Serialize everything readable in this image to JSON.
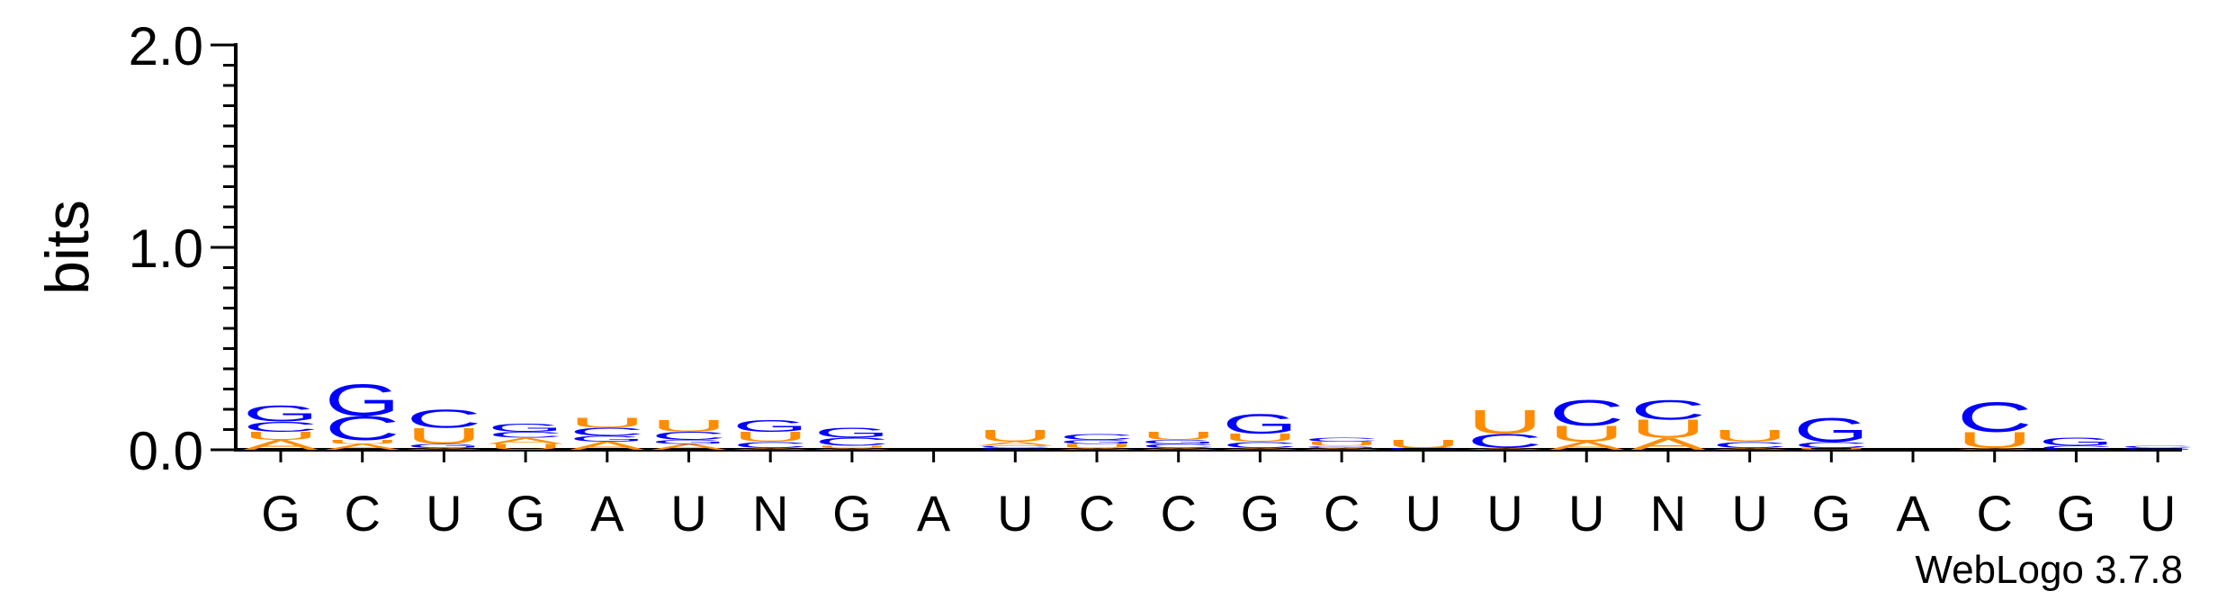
{
  "chart_data": {
    "type": "sequence-logo",
    "ylabel": "bits",
    "ylim": [
      0,
      2.0
    ],
    "yticks": [
      {
        "value": 0.0,
        "label": "0.0"
      },
      {
        "value": 1.0,
        "label": "1.0"
      },
      {
        "value": 2.0,
        "label": "2.0"
      }
    ],
    "minor_tick_step": 0.1,
    "colors": {
      "A": "#ff8c00",
      "U": "#ff8c00",
      "G": "#0000ff",
      "C": "#0000ff"
    },
    "x_labels": [
      "G",
      "C",
      "U",
      "G",
      "A",
      "U",
      "N",
      "G",
      "A",
      "U",
      "C",
      "C",
      "G",
      "C",
      "U",
      "U",
      "U",
      "N",
      "U",
      "G",
      "A",
      "C",
      "G",
      "U"
    ],
    "columns": [
      {
        "stack": [
          {
            "letter": "A",
            "bits": 0.05
          },
          {
            "letter": "U",
            "bits": 0.04
          },
          {
            "letter": "C",
            "bits": 0.05
          },
          {
            "letter": "G",
            "bits": 0.08
          }
        ]
      },
      {
        "stack": [
          {
            "letter": "A",
            "bits": 0.03
          },
          {
            "letter": "U",
            "bits": 0.02
          },
          {
            "letter": "C",
            "bits": 0.12
          },
          {
            "letter": "G",
            "bits": 0.16
          }
        ]
      },
      {
        "stack": [
          {
            "letter": "A",
            "bits": 0.01
          },
          {
            "letter": "G",
            "bits": 0.02
          },
          {
            "letter": "U",
            "bits": 0.08
          },
          {
            "letter": "C",
            "bits": 0.09
          }
        ]
      },
      {
        "stack": [
          {
            "letter": "U",
            "bits": 0.03
          },
          {
            "letter": "A",
            "bits": 0.03
          },
          {
            "letter": "C",
            "bits": 0.03
          },
          {
            "letter": "G",
            "bits": 0.04
          }
        ]
      },
      {
        "stack": [
          {
            "letter": "A",
            "bits": 0.04
          },
          {
            "letter": "G",
            "bits": 0.03
          },
          {
            "letter": "C",
            "bits": 0.04
          },
          {
            "letter": "U",
            "bits": 0.05
          }
        ]
      },
      {
        "stack": [
          {
            "letter": "A",
            "bits": 0.03
          },
          {
            "letter": "G",
            "bits": 0.02
          },
          {
            "letter": "C",
            "bits": 0.04
          },
          {
            "letter": "U",
            "bits": 0.06
          }
        ]
      },
      {
        "stack": [
          {
            "letter": "A",
            "bits": 0.01
          },
          {
            "letter": "C",
            "bits": 0.03
          },
          {
            "letter": "U",
            "bits": 0.05
          },
          {
            "letter": "G",
            "bits": 0.06
          }
        ]
      },
      {
        "stack": [
          {
            "letter": "A",
            "bits": 0.01
          },
          {
            "letter": "U",
            "bits": 0.01
          },
          {
            "letter": "C",
            "bits": 0.04
          },
          {
            "letter": "G",
            "bits": 0.05
          }
        ]
      },
      {
        "stack": []
      },
      {
        "stack": [
          {
            "letter": "G",
            "bits": 0.01
          },
          {
            "letter": "C",
            "bits": 0.01
          },
          {
            "letter": "A",
            "bits": 0.02
          },
          {
            "letter": "U",
            "bits": 0.06
          }
        ]
      },
      {
        "stack": [
          {
            "letter": "A",
            "bits": 0.01
          },
          {
            "letter": "U",
            "bits": 0.02
          },
          {
            "letter": "G",
            "bits": 0.02
          },
          {
            "letter": "C",
            "bits": 0.03
          }
        ]
      },
      {
        "stack": [
          {
            "letter": "A",
            "bits": 0.01
          },
          {
            "letter": "C",
            "bits": 0.02
          },
          {
            "letter": "G",
            "bits": 0.02
          },
          {
            "letter": "U",
            "bits": 0.04
          }
        ]
      },
      {
        "stack": [
          {
            "letter": "A",
            "bits": 0.01
          },
          {
            "letter": "C",
            "bits": 0.03
          },
          {
            "letter": "U",
            "bits": 0.04
          },
          {
            "letter": "G",
            "bits": 0.1
          }
        ]
      },
      {
        "stack": [
          {
            "letter": "A",
            "bits": 0.01
          },
          {
            "letter": "G",
            "bits": 0.01
          },
          {
            "letter": "U",
            "bits": 0.02
          },
          {
            "letter": "C",
            "bits": 0.02
          }
        ]
      },
      {
        "stack": [
          {
            "letter": "C",
            "bits": 0.01
          },
          {
            "letter": "U",
            "bits": 0.04
          }
        ]
      },
      {
        "stack": [
          {
            "letter": "A",
            "bits": 0.01
          },
          {
            "letter": "C",
            "bits": 0.07
          },
          {
            "letter": "U",
            "bits": 0.12
          }
        ]
      },
      {
        "stack": [
          {
            "letter": "A",
            "bits": 0.04
          },
          {
            "letter": "U",
            "bits": 0.08
          },
          {
            "letter": "C",
            "bits": 0.13
          }
        ]
      },
      {
        "stack": [
          {
            "letter": "A",
            "bits": 0.06
          },
          {
            "letter": "U",
            "bits": 0.09
          },
          {
            "letter": "C",
            "bits": 0.1
          }
        ]
      },
      {
        "stack": [
          {
            "letter": "A",
            "bits": 0.01
          },
          {
            "letter": "C",
            "bits": 0.03
          },
          {
            "letter": "U",
            "bits": 0.06
          }
        ]
      },
      {
        "stack": [
          {
            "letter": "U",
            "bits": 0.01
          },
          {
            "letter": "C",
            "bits": 0.03
          },
          {
            "letter": "G",
            "bits": 0.12
          }
        ]
      },
      {
        "stack": []
      },
      {
        "stack": [
          {
            "letter": "A",
            "bits": 0.01
          },
          {
            "letter": "U",
            "bits": 0.08
          },
          {
            "letter": "C",
            "bits": 0.15
          }
        ]
      },
      {
        "stack": [
          {
            "letter": "C",
            "bits": 0.02
          },
          {
            "letter": "G",
            "bits": 0.04
          }
        ]
      },
      {
        "stack": [
          {
            "letter": "G",
            "bits": 0.01
          },
          {
            "letter": "C",
            "bits": 0.01
          }
        ]
      }
    ]
  },
  "footer": {
    "credit": "WebLogo 3.7.8"
  }
}
